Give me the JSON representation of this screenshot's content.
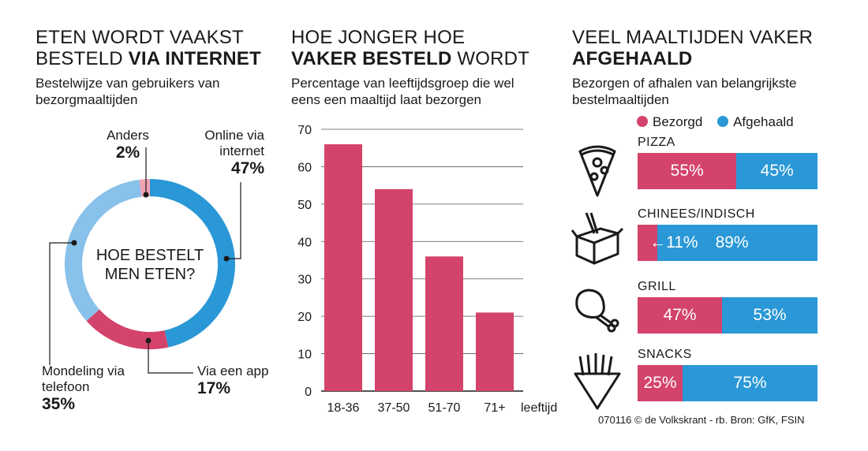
{
  "donut": {
    "title_normal": "ETEN WORDT VAAKST BESTELD ",
    "title_bold": "VIA INTERNET",
    "subtitle": "Bestelwijze van gebruikers van bezorgmaaltijden",
    "center_label": "HOE BESTELT MEN ETEN?",
    "labels": {
      "online": "Online via internet",
      "anders": "Anders",
      "app": "Via een app",
      "telefoon": "Mondeling via telefoon"
    },
    "pcts": {
      "online": "47%",
      "anders": "2%",
      "app": "17%",
      "telefoon": "35%"
    }
  },
  "bars": {
    "title_normal_1": "HOE JONGER HOE",
    "title_bold": "VAKER BESTELD",
    "title_normal_2": " WORDT",
    "subtitle": "Percentage van leeftijdsgroep die wel eens een maaltijd laat bezorgen",
    "xlabel": "leeftijd"
  },
  "stacked": {
    "title_normal": "VEEL MAALTIJDEN VAKER",
    "title_bold": "AFGEHAALD",
    "subtitle": "Bezorgen of afhalen van belangrijkste bestelmaaltijden",
    "legend_b": "Bezorgd",
    "legend_a": "Afgehaald",
    "rows": [
      {
        "label": "PIZZA",
        "b_label": "55%",
        "a_label": "45%"
      },
      {
        "label": "CHINEES/INDISCH",
        "b_label": "←11%",
        "a_label": "89%"
      },
      {
        "label": "GRILL",
        "b_label": "47%",
        "a_label": "53%"
      },
      {
        "label": "SNACKS",
        "b_label": "25%",
        "a_label": "75%"
      }
    ]
  },
  "source": "070116 © de Volkskrant - rb. Bron: GfK, FSIN",
  "colors": {
    "online": "#2a98d6",
    "anders": "#f1a3b3",
    "app": "#d3436b",
    "telefoon": "#88c1ea",
    "bar": "#d3436b",
    "bezorgd": "#d3436b",
    "afgehaald": "#2a98d6"
  },
  "chart_data": [
    {
      "type": "pie",
      "categories": [
        "Online via internet",
        "Anders",
        "Mondeling via telefoon",
        "Via een app"
      ],
      "values": [
        47,
        2,
        35,
        17
      ],
      "title": "ETEN WORDT VAAKST BESTELD VIA INTERNET",
      "subtitle": "Bestelwijze van gebruikers van bezorgmaaltijden"
    },
    {
      "type": "bar",
      "categories": [
        "18-36",
        "37-50",
        "51-70",
        "71+"
      ],
      "values": [
        66,
        54,
        36,
        21
      ],
      "title": "HOE JONGER HOE VAKER BESTELD WORDT",
      "subtitle": "Percentage van leeftijdsgroep die wel eens een maaltijd laat bezorgen",
      "xlabel": "leeftijd",
      "ylabel": "",
      "ylim": [
        0,
        70
      ],
      "yticks": [
        0,
        10,
        20,
        30,
        40,
        50,
        60,
        70
      ],
      "grid": true
    },
    {
      "type": "bar",
      "stacked": true,
      "orientation": "horizontal",
      "categories": [
        "PIZZA",
        "CHINEES/INDISCH",
        "GRILL",
        "SNACKS"
      ],
      "series": [
        {
          "name": "Bezorgd",
          "values": [
            55,
            11,
            47,
            25
          ]
        },
        {
          "name": "Afgehaald",
          "values": [
            45,
            89,
            53,
            75
          ]
        }
      ],
      "title": "VEEL MAALTIJDEN VAKER AFGEHAALD",
      "subtitle": "Bezorgen of afhalen van belangrijkste bestelmaaltijden",
      "legend": "top"
    }
  ]
}
